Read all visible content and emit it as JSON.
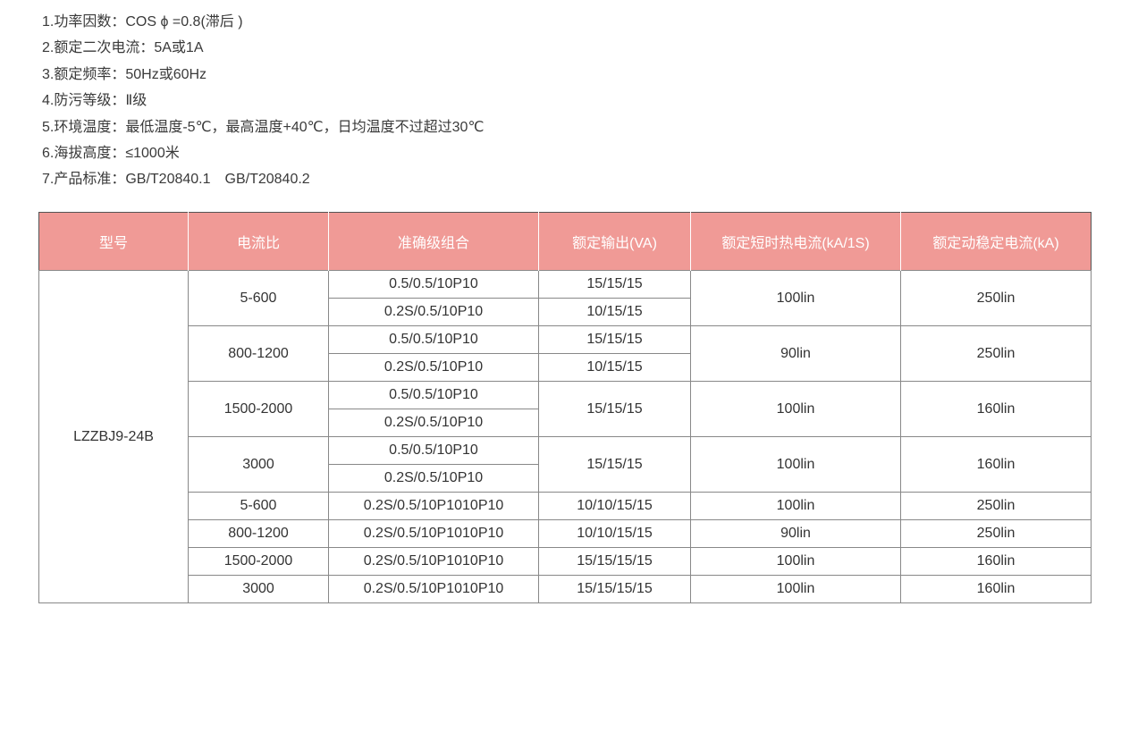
{
  "specs": [
    "1.功率因数：COS ϕ =0.8(滞后 )",
    "2.额定二次电流：5A或1A",
    "3.额定频率：50Hz或60Hz",
    "4.防污等级：Ⅱ级",
    "5.环境温度：最低温度-5℃，最高温度+40℃，日均温度不过超过30℃",
    "6.海拔高度：≤1000米",
    "7.产品标准：GB/T20840.1　GB/T20840.2"
  ],
  "header_color": "#F09A96",
  "table": {
    "headers": [
      "型号",
      "电流比",
      "准确级组合",
      "额定输出(VA)",
      "额定短时热电流(kA/1S)",
      "额定动稳定电流(kA)"
    ],
    "model": "LZZBJ9-24B",
    "groups": [
      {
        "ratio": "5-600",
        "accuracy": [
          "0.5/0.5/10P10",
          "0.2S/0.5/10P10"
        ],
        "output": [
          "15/15/15",
          "10/15/15"
        ],
        "thermal": "100lin",
        "dynamic": "250lin"
      },
      {
        "ratio": "800-1200",
        "accuracy": [
          "0.5/0.5/10P10",
          "0.2S/0.5/10P10"
        ],
        "output": [
          "15/15/15",
          "10/15/15"
        ],
        "thermal": "90lin",
        "dynamic": "250lin"
      },
      {
        "ratio": "1500-2000",
        "accuracy": [
          "0.5/0.5/10P10",
          "0.2S/0.5/10P10"
        ],
        "output": [
          "15/15/15"
        ],
        "thermal": "100lin",
        "dynamic": "160lin"
      },
      {
        "ratio": "3000",
        "accuracy": [
          "0.5/0.5/10P10",
          "0.2S/0.5/10P10"
        ],
        "output": [
          "15/15/15"
        ],
        "thermal": "100lin",
        "dynamic": "160lin"
      },
      {
        "ratio": "5-600",
        "accuracy": [
          "0.2S/0.5/10P1010P10"
        ],
        "output": [
          "10/10/15/15"
        ],
        "thermal": "100lin",
        "dynamic": "250lin"
      },
      {
        "ratio": "800-1200",
        "accuracy": [
          "0.2S/0.5/10P1010P10"
        ],
        "output": [
          "10/10/15/15"
        ],
        "thermal": "90lin",
        "dynamic": "250lin"
      },
      {
        "ratio": "1500-2000",
        "accuracy": [
          "0.2S/0.5/10P1010P10"
        ],
        "output": [
          "15/15/15/15"
        ],
        "thermal": "100lin",
        "dynamic": "160lin"
      },
      {
        "ratio": "3000",
        "accuracy": [
          "0.2S/0.5/10P1010P10"
        ],
        "output": [
          "15/15/15/15"
        ],
        "thermal": "100lin",
        "dynamic": "160lin"
      }
    ]
  }
}
